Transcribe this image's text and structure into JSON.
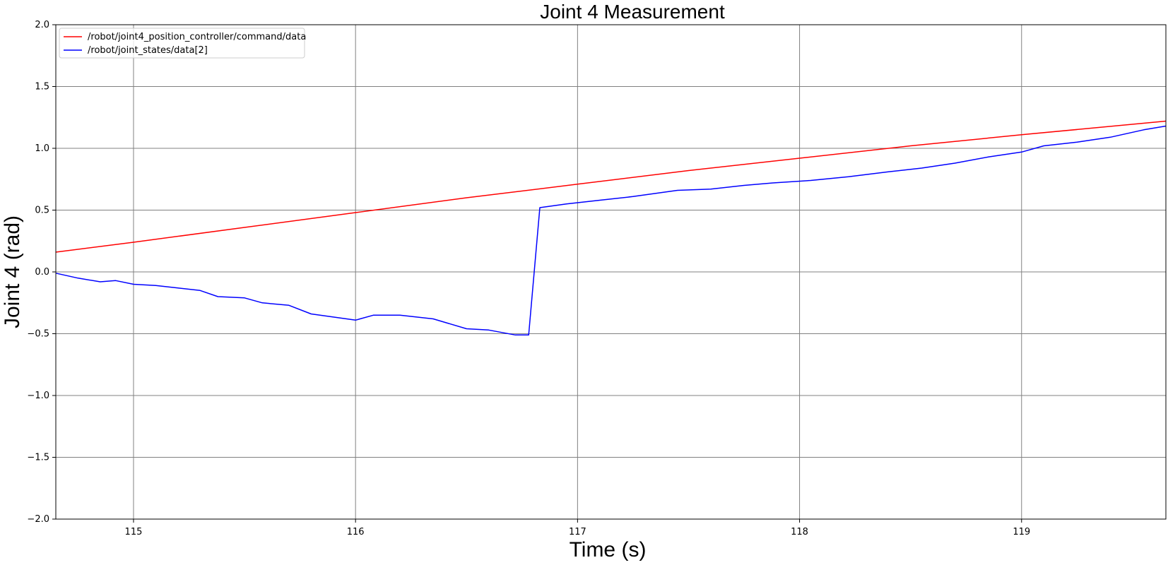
{
  "chart_data": {
    "type": "line",
    "title": "Joint 4 Measurement",
    "xlabel": "Time (s)",
    "ylabel": "Joint 4 (rad)",
    "xlim": [
      114.65,
      119.65
    ],
    "ylim": [
      -2.0,
      2.0
    ],
    "xticks": [
      115,
      116,
      117,
      118,
      119
    ],
    "yticks": [
      -2.0,
      -1.5,
      -1.0,
      -0.5,
      0.0,
      0.5,
      1.0,
      1.5,
      2.0
    ],
    "grid": true,
    "legend_position": "upper-left",
    "series": [
      {
        "name": "/robot/joint4_position_controller/command/data",
        "color": "#ff0000",
        "x": [
          114.65,
          115.0,
          115.5,
          116.0,
          116.5,
          117.0,
          117.5,
          118.0,
          118.5,
          119.0,
          119.65
        ],
        "y": [
          0.16,
          0.24,
          0.36,
          0.48,
          0.6,
          0.71,
          0.82,
          0.92,
          1.02,
          1.11,
          1.22
        ]
      },
      {
        "name": "/robot/joint_states/data[2]",
        "color": "#0000ff",
        "x": [
          114.65,
          114.7,
          114.75,
          114.85,
          114.92,
          115.0,
          115.1,
          115.2,
          115.3,
          115.38,
          115.5,
          115.58,
          115.7,
          115.8,
          115.92,
          116.0,
          116.08,
          116.2,
          116.35,
          116.5,
          116.6,
          116.72,
          116.78,
          116.83,
          116.95,
          117.1,
          117.25,
          117.45,
          117.6,
          117.75,
          117.88,
          118.05,
          118.22,
          118.4,
          118.55,
          118.7,
          118.85,
          119.0,
          119.1,
          119.25,
          119.4,
          119.55,
          119.65
        ],
        "y": [
          -0.01,
          -0.03,
          -0.05,
          -0.08,
          -0.07,
          -0.1,
          -0.11,
          -0.13,
          -0.15,
          -0.2,
          -0.21,
          -0.25,
          -0.27,
          -0.34,
          -0.37,
          -0.39,
          -0.35,
          -0.35,
          -0.38,
          -0.46,
          -0.47,
          -0.51,
          -0.51,
          0.52,
          0.55,
          0.58,
          0.61,
          0.66,
          0.67,
          0.7,
          0.72,
          0.74,
          0.77,
          0.81,
          0.84,
          0.88,
          0.93,
          0.97,
          1.02,
          1.05,
          1.09,
          1.15,
          1.18
        ]
      }
    ]
  }
}
